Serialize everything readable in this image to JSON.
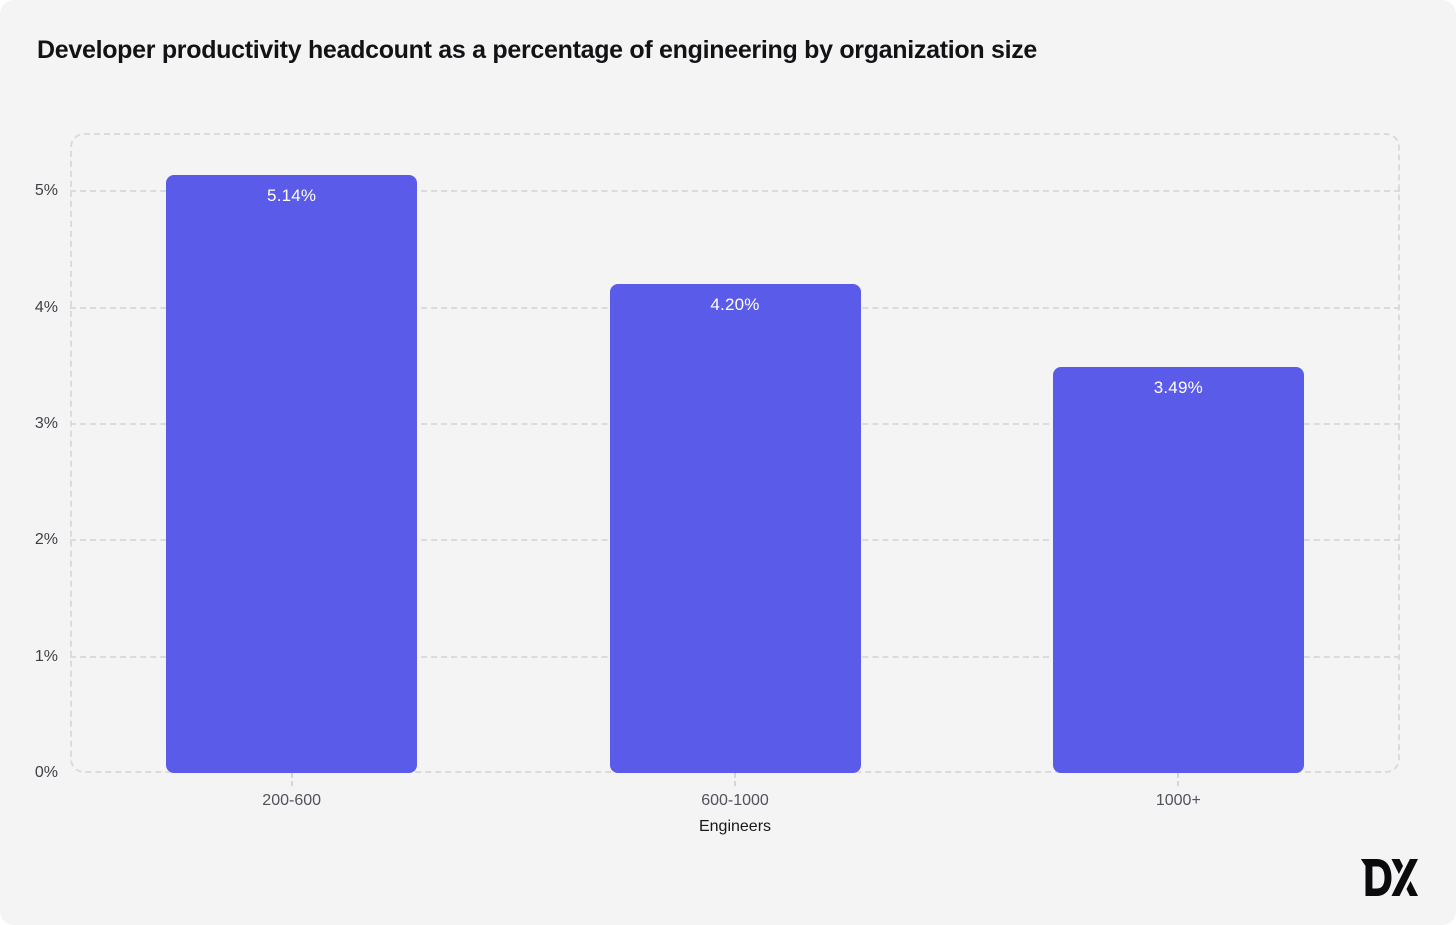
{
  "title": "Developer productivity headcount as a percentage of engineering by organization size",
  "chart_data": {
    "type": "bar",
    "categories": [
      "200-600",
      "600-1000",
      "1000+"
    ],
    "values": [
      5.14,
      4.2,
      3.49
    ],
    "value_labels": [
      "5.14%",
      "4.20%",
      "3.49%"
    ],
    "title": "Developer productivity headcount as a percentage of engineering by organization size",
    "xlabel": "Engineers",
    "ylabel": "",
    "ylim": [
      0,
      5.5
    ],
    "yticks": [
      0,
      1,
      2,
      3,
      4,
      5
    ],
    "ytick_labels": [
      "0%",
      "1%",
      "2%",
      "3%",
      "4%",
      "5%"
    ],
    "grid": "dashed horizontal gridlines, dashed rounded plot frame",
    "legend": "none",
    "bar_color": "#5b5be9",
    "bar_label_color": "#ffffff"
  },
  "colors": {
    "page_bg": "#ffffff",
    "card_bg": "#f4f4f5",
    "grid": "#dbdbde",
    "tick_mark": "#d5d5d9",
    "title_text": "#131316",
    "ytick_text": "#3f3f46",
    "xtick_text": "#52525b",
    "xaxis_title_text": "#18181b",
    "bar": "#5b5be9",
    "logo": "#0b0b0e"
  },
  "branding": {
    "logo_text": "DX"
  }
}
